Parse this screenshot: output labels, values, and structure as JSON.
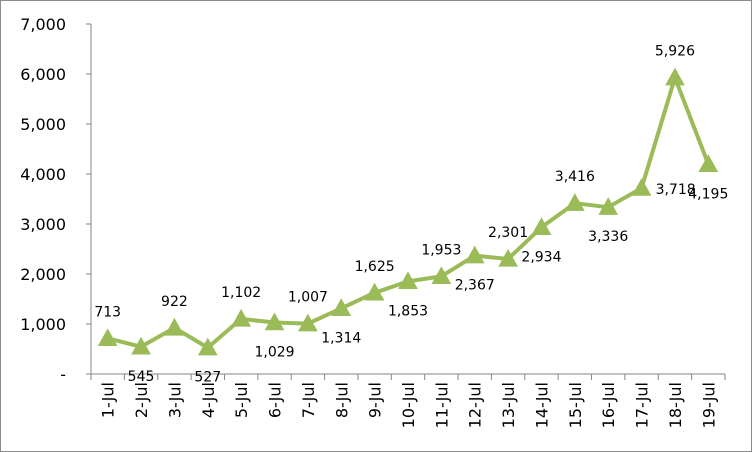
{
  "chart_data": {
    "type": "line",
    "title": "",
    "xlabel": "",
    "ylabel": "",
    "categories": [
      "1-Jul",
      "2-Jul",
      "3-Jul",
      "4-Jul",
      "5-Jul",
      "6-Jul",
      "7-Jul",
      "8-Jul",
      "9-Jul",
      "10-Jul",
      "11-Jul",
      "12-Jul",
      "13-Jul",
      "14-Jul",
      "15-Jul",
      "16-Jul",
      "17-Jul",
      "18-Jul",
      "19-Jul"
    ],
    "series": [
      {
        "values": [
          713,
          545,
          922,
          527,
          1102,
          1029,
          1007,
          1314,
          1625,
          1853,
          1953,
          2367,
          2301,
          2934,
          3416,
          3336,
          3718,
          5926,
          4195
        ],
        "color": "#9bbb59",
        "marker": "triangle"
      }
    ],
    "value_labels": [
      "713",
      "545",
      "922",
      "527",
      "1,102",
      "1,029",
      "1,007",
      "1,314",
      "1,625",
      "1,853",
      "1,953",
      "2,367",
      "2,301",
      "2,934",
      "3,416",
      "3,336",
      "3,718",
      "5,926",
      "4,195"
    ],
    "label_positions": [
      "above",
      "below",
      "above",
      "below",
      "above",
      "below",
      "above",
      "below",
      "above",
      "below",
      "above",
      "below",
      "above",
      "below",
      "above",
      "below",
      "right",
      "above",
      "below"
    ],
    "ylim": [
      0,
      7000
    ],
    "yticks": [
      0,
      1000,
      2000,
      3000,
      4000,
      5000,
      6000,
      7000
    ],
    "ytick_labels": [
      "-",
      "1,000",
      "2,000",
      "3,000",
      "4,000",
      "5,000",
      "6,000",
      "7,000"
    ],
    "grid": false,
    "legend": "none"
  }
}
